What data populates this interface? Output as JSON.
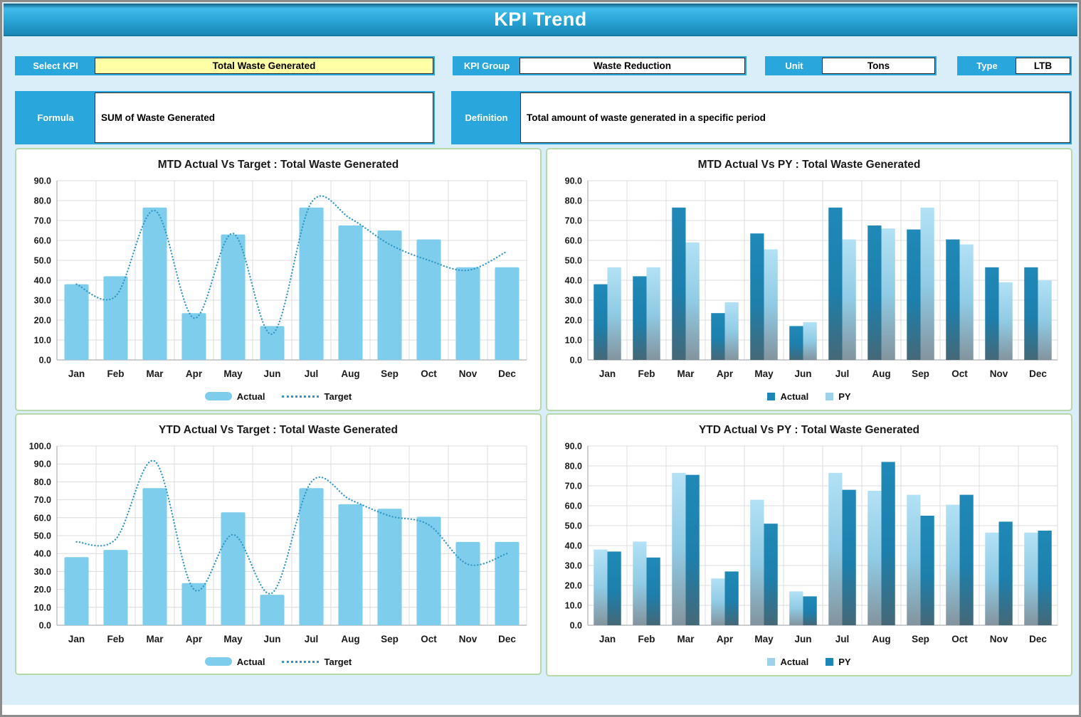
{
  "header": {
    "title": "KPI Trend"
  },
  "controls": {
    "select_kpi": {
      "label": "Select KPI",
      "value": "Total Waste Generated"
    },
    "kpi_group": {
      "label": "KPI Group",
      "value": "Waste Reduction"
    },
    "unit": {
      "label": "Unit",
      "value": "Tons"
    },
    "type": {
      "label": "Type",
      "value": "LTB"
    },
    "formula": {
      "label": "Formula",
      "value": "SUM of Waste Generated"
    },
    "definition": {
      "label": "Definition",
      "value": "Total amount of waste generated in a specific period"
    }
  },
  "colors": {
    "accent": "#29A7DD",
    "header_gradient_top": "#41BCEA",
    "header_gradient_bottom": "#1987B5",
    "select_kpi_fill": "#FFFFA6",
    "panel_border": "#B7D9A9",
    "bar_flat_light": "#7FCDEC",
    "bar_grad_dark_top": "#2089B7",
    "bar_grad_dark_bottom": "#456877",
    "bar_grad_light_top": "#B3E1F5",
    "bar_grad_light_bottom": "#83949E",
    "target_line": "#2F96C6",
    "grid_line": "#DCDCDC",
    "axis_line": "#ADB2B8"
  },
  "chart_data": [
    {
      "id": "mtd_actual_vs_target",
      "type": "bar",
      "title": "MTD Actual Vs Target : Total Waste Generated",
      "categories": [
        "Jan",
        "Feb",
        "Mar",
        "Apr",
        "May",
        "Jun",
        "Jul",
        "Aug",
        "Sep",
        "Oct",
        "Nov",
        "Dec"
      ],
      "series": [
        {
          "name": "Actual",
          "kind": "bar",
          "style": "flat_light",
          "values": [
            38,
            42,
            76.5,
            23.5,
            63,
            17,
            76.5,
            67.5,
            65,
            60.5,
            46.5,
            46.5
          ]
        },
        {
          "name": "Target",
          "kind": "line",
          "style": "dotted",
          "values": [
            38,
            32,
            75,
            21,
            63.5,
            13,
            79,
            71,
            58,
            50,
            45,
            54.5
          ]
        }
      ],
      "ylim": [
        0,
        90
      ],
      "ytick_step": 10,
      "grid": true,
      "legend_position": "bottom"
    },
    {
      "id": "mtd_actual_vs_py",
      "type": "bar",
      "title": "MTD Actual Vs PY : Total Waste Generated",
      "categories": [
        "Jan",
        "Feb",
        "Mar",
        "Apr",
        "May",
        "Jun",
        "Jul",
        "Aug",
        "Sep",
        "Oct",
        "Nov",
        "Dec"
      ],
      "series": [
        {
          "name": "Actual",
          "kind": "bar",
          "style": "grad_dark",
          "values": [
            38,
            42,
            76.5,
            23.5,
            63.5,
            17,
            76.5,
            67.5,
            65.5,
            60.5,
            46.5,
            46.5
          ]
        },
        {
          "name": "PY",
          "kind": "bar",
          "style": "grad_light",
          "values": [
            46.5,
            46.5,
            59,
            29,
            55.5,
            19,
            60.5,
            66,
            76.5,
            58,
            39,
            40
          ]
        }
      ],
      "ylim": [
        0,
        90
      ],
      "ytick_step": 10,
      "grid": true,
      "legend_position": "bottom"
    },
    {
      "id": "ytd_actual_vs_target",
      "type": "bar",
      "title": "YTD Actual Vs Target : Total Waste Generated",
      "categories": [
        "Jan",
        "Feb",
        "Mar",
        "Apr",
        "May",
        "Jun",
        "Jul",
        "Aug",
        "Sep",
        "Oct",
        "Nov",
        "Dec"
      ],
      "series": [
        {
          "name": "Actual",
          "kind": "bar",
          "style": "flat_light",
          "values": [
            38,
            42,
            76.5,
            23.5,
            63,
            17,
            76.5,
            67.5,
            65,
            60.5,
            46.5,
            46.5
          ]
        },
        {
          "name": "Target",
          "kind": "line",
          "style": "dotted",
          "values": [
            46.5,
            48,
            91.5,
            20,
            50.5,
            18,
            80,
            70,
            61,
            56,
            34,
            40
          ]
        }
      ],
      "ylim": [
        0,
        100
      ],
      "ytick_step": 10,
      "grid": true,
      "legend_position": "bottom"
    },
    {
      "id": "ytd_actual_vs_py",
      "type": "bar",
      "title": "YTD Actual Vs PY : Total Waste Generated",
      "categories": [
        "Jan",
        "Feb",
        "Mar",
        "Apr",
        "May",
        "Jun",
        "Jul",
        "Aug",
        "Sep",
        "Oct",
        "Nov",
        "Dec"
      ],
      "series": [
        {
          "name": "Actual",
          "kind": "bar",
          "style": "grad_light",
          "values": [
            38,
            42,
            76.5,
            23.5,
            63,
            17,
            76.5,
            67.5,
            65.5,
            60.5,
            46.5,
            46.5
          ]
        },
        {
          "name": "PY",
          "kind": "bar",
          "style": "grad_dark",
          "values": [
            37,
            34,
            75.5,
            27,
            51,
            14.5,
            68,
            82,
            55,
            65.5,
            52,
            47.5
          ]
        }
      ],
      "ylim": [
        0,
        90
      ],
      "ytick_step": 10,
      "grid": true,
      "legend_position": "bottom"
    }
  ]
}
